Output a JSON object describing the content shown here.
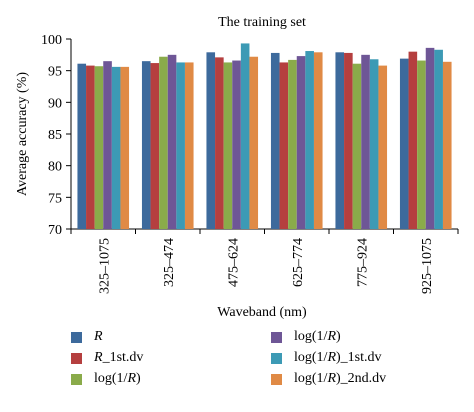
{
  "chart_data": {
    "type": "bar",
    "title": "The training set",
    "xlabel": "Waveband (nm)",
    "ylabel": "Average accuracy (%)",
    "ylim": [
      70,
      100
    ],
    "yticks": [
      70,
      75,
      80,
      85,
      90,
      95,
      100
    ],
    "grid": false,
    "legend_position": "bottom",
    "categories": [
      "325–1075",
      "325–474",
      "475–624",
      "625–774",
      "775–924",
      "925–1075"
    ],
    "series": [
      {
        "name": "R",
        "color": "#3d6a9c",
        "values": [
          96.1,
          96.5,
          97.9,
          97.8,
          97.9,
          96.9
        ]
      },
      {
        "name": "R_1st.dv",
        "color": "#b53f3f",
        "values": [
          95.8,
          96.2,
          97.1,
          96.3,
          97.8,
          98.0
        ]
      },
      {
        "name": "log(1/R)",
        "color": "#8aab4a",
        "values": [
          95.7,
          97.2,
          96.3,
          96.7,
          96.1,
          96.6
        ]
      },
      {
        "name": "log(1/R)",
        "color": "#6e5696",
        "values": [
          96.5,
          97.5,
          96.6,
          97.3,
          97.5,
          98.6
        ]
      },
      {
        "name": "log(1/R)_1st.dv",
        "color": "#3c9ab5",
        "values": [
          95.6,
          96.3,
          99.3,
          98.1,
          96.8,
          98.3
        ]
      },
      {
        "name": "log(1/R)_2nd.dv",
        "color": "#e08a45",
        "values": [
          95.6,
          96.3,
          97.2,
          97.9,
          95.8,
          96.4
        ]
      }
    ]
  }
}
